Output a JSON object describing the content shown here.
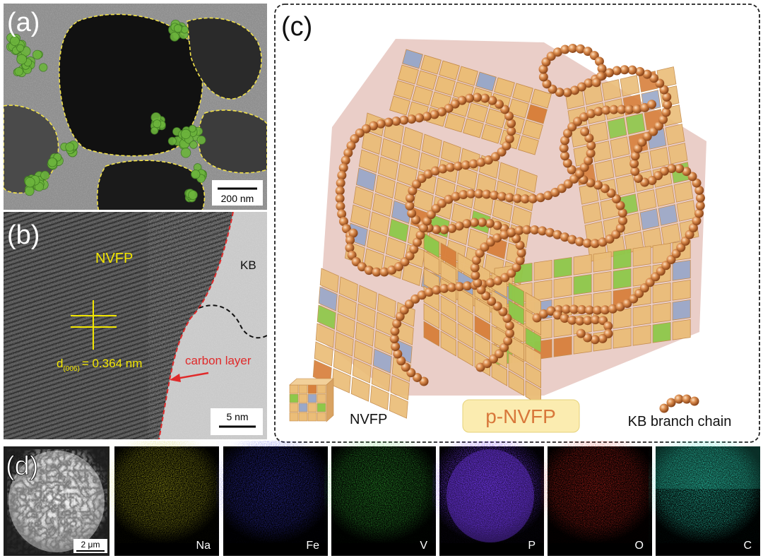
{
  "panels": {
    "a": {
      "label": "(a)",
      "scale_bar": "200 nm"
    },
    "b": {
      "label": "(b)",
      "phase": "NVFP",
      "kb": "KB",
      "d_symbol": "d",
      "d_subscript": "(006)",
      "d_value": "= 0.364 nm",
      "carbon": "carbon layer",
      "scale_bar": "5 nm"
    },
    "c": {
      "label": "(c)",
      "legend_cube": "NVFP",
      "legend_composite": "p-NVFP",
      "legend_chain": "KB branch chain"
    },
    "d": {
      "label": "(d)",
      "scale_bar": "2 μm",
      "maps": [
        "Na",
        "Fe",
        "V",
        "P",
        "O",
        "C"
      ]
    }
  }
}
